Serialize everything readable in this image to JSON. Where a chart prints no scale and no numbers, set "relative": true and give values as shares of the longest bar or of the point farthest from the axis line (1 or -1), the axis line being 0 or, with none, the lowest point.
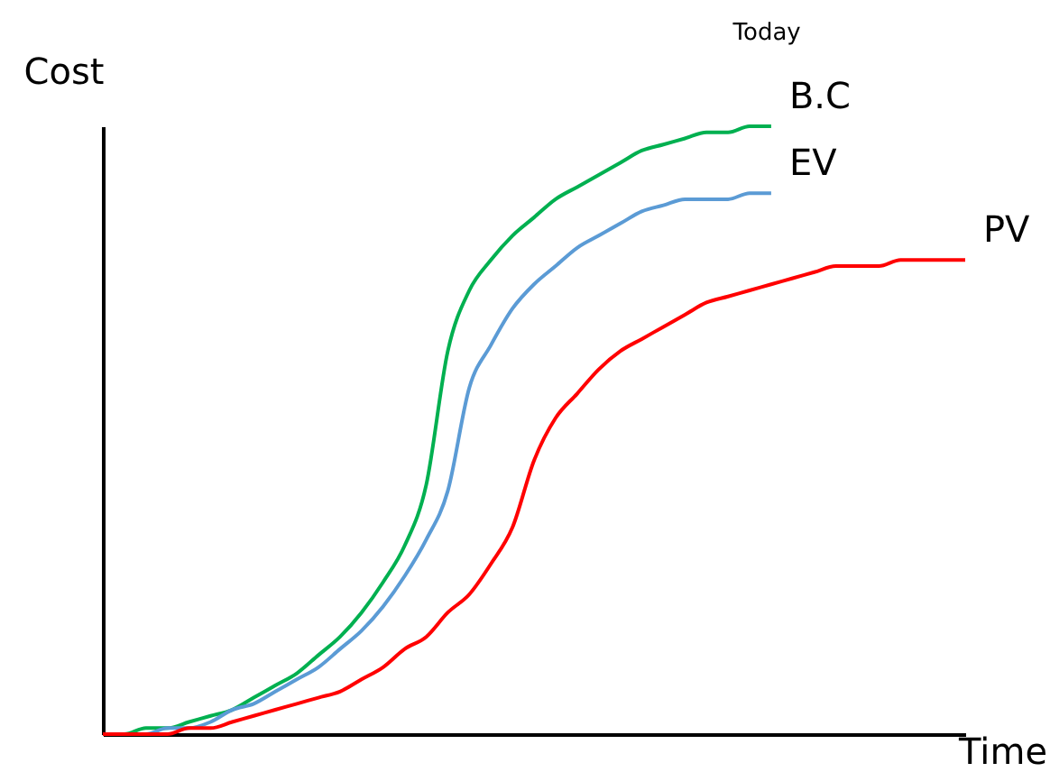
{
  "chart_data": {
    "type": "line",
    "relative": true,
    "xlabel": "Time",
    "ylabel": "Cost",
    "annotations": [
      "Today"
    ],
    "tick_labels": false,
    "categories": [
      null,
      null,
      null,
      null,
      null,
      null,
      null,
      null,
      null,
      null,
      null,
      null,
      null,
      null,
      null,
      null,
      null,
      null,
      null,
      null,
      null,
      null,
      null,
      null,
      null,
      null,
      null,
      null,
      null,
      null,
      null,
      null,
      null,
      null,
      null,
      null,
      null,
      null,
      null,
      null,
      null
    ],
    "series": [
      {
        "name": "B.C",
        "color": "#00b050",
        "values": [
          0,
          0,
          0.01,
          0.01,
          0.02,
          0.03,
          0.04,
          0.06,
          0.08,
          0.1,
          0.13,
          0.16,
          0.2,
          0.25,
          0.31,
          0.41,
          0.63,
          0.73,
          0.78,
          0.82,
          0.85,
          0.88,
          0.9,
          0.92,
          0.94,
          0.96,
          0.97,
          0.98,
          0.99,
          0.99,
          1.0,
          1.0,
          null,
          null,
          null,
          null,
          null,
          null,
          null,
          null,
          null
        ]
      },
      {
        "name": "EV",
        "color": "#5b9bd5",
        "values": [
          0,
          0,
          0,
          0.01,
          0.01,
          0.02,
          0.04,
          0.05,
          0.07,
          0.09,
          0.11,
          0.14,
          0.17,
          0.21,
          0.26,
          0.32,
          0.4,
          0.57,
          0.64,
          0.7,
          0.74,
          0.77,
          0.8,
          0.82,
          0.84,
          0.86,
          0.87,
          0.88,
          0.88,
          0.88,
          0.89,
          0.89,
          null,
          null,
          null,
          null,
          null,
          null,
          null,
          null,
          null
        ]
      },
      {
        "name": "PV",
        "color": "#ff0000",
        "values": [
          0,
          0,
          0,
          0,
          0.01,
          0.01,
          0.02,
          0.03,
          0.04,
          0.05,
          0.06,
          0.07,
          0.09,
          0.11,
          0.14,
          0.16,
          0.2,
          0.23,
          0.28,
          0.34,
          0.45,
          0.52,
          0.56,
          0.6,
          0.63,
          0.65,
          0.67,
          0.69,
          0.71,
          0.72,
          0.73,
          0.74,
          0.75,
          0.76,
          0.77,
          0.77,
          0.77,
          0.78,
          0.78,
          0.78,
          0.78
        ]
      }
    ]
  }
}
